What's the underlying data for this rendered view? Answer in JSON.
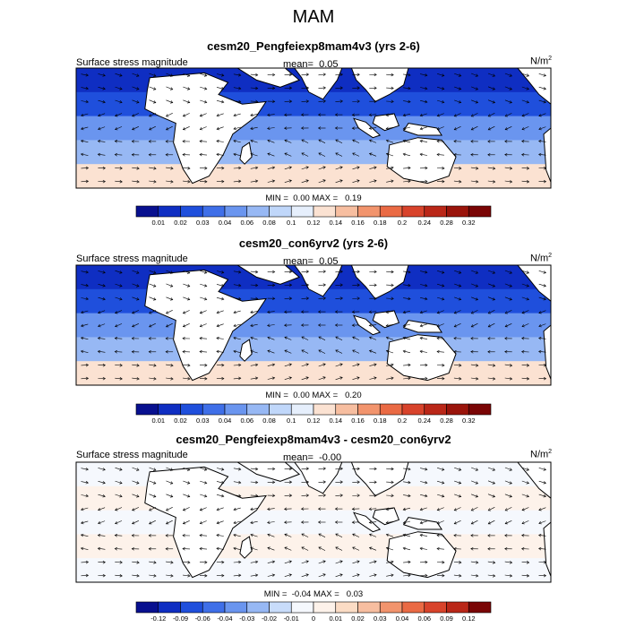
{
  "figure": {
    "title": "MAM"
  },
  "chart_data": [
    {
      "type": "heatmap",
      "title": "cesm20_Pengfeiexp8mam4v3 (yrs 2-6)",
      "left_string": "Surface stress magnitude",
      "mean_label": "mean=",
      "mean_value": "0.05",
      "units_base": "N/m",
      "units_exp": "2",
      "min_label": "MIN =",
      "min_value": "0.00",
      "max_label": "MAX =",
      "max_value": "0.19",
      "colorbar": {
        "labels": [
          "0.01",
          "0.02",
          "0.03",
          "0.04",
          "0.06",
          "0.08",
          "0.1",
          "0.12",
          "0.14",
          "0.16",
          "0.18",
          "0.2",
          "0.24",
          "0.28",
          "0.32"
        ],
        "colors": [
          "#08108f",
          "#0f2ec2",
          "#1f4fdc",
          "#3f6fe8",
          "#6a95ef",
          "#97b8f4",
          "#c0d7fa",
          "#e6effc",
          "#fbe2d2",
          "#f7bea0",
          "#f2946d",
          "#ea6a44",
          "#d8432b",
          "#ba2718",
          "#9a140b",
          "#7a0505"
        ]
      },
      "map_fill_levels": [
        0.01,
        0.02,
        0.04,
        0.07,
        0.12
      ],
      "data_note": ""
    },
    {
      "type": "heatmap",
      "title": "cesm20_con6yrv2 (yrs 2-6)",
      "left_string": "Surface stress magnitude",
      "mean_label": "mean=",
      "mean_value": "0.05",
      "units_base": "N/m",
      "units_exp": "2",
      "min_label": "MIN =",
      "min_value": "0.00",
      "max_label": "MAX =",
      "max_value": "0.20",
      "colorbar": {
        "labels": [
          "0.01",
          "0.02",
          "0.03",
          "0.04",
          "0.06",
          "0.08",
          "0.1",
          "0.12",
          "0.14",
          "0.16",
          "0.18",
          "0.2",
          "0.24",
          "0.28",
          "0.32"
        ],
        "colors": [
          "#08108f",
          "#0f2ec2",
          "#1f4fdc",
          "#3f6fe8",
          "#6a95ef",
          "#97b8f4",
          "#c0d7fa",
          "#e6effc",
          "#fbe2d2",
          "#f7bea0",
          "#f2946d",
          "#ea6a44",
          "#d8432b",
          "#ba2718",
          "#9a140b",
          "#7a0505"
        ]
      },
      "map_fill_levels": [
        0.01,
        0.02,
        0.04,
        0.07,
        0.12
      ],
      "data_note": ""
    },
    {
      "type": "heatmap",
      "title": "cesm20_Pengfeiexp8mam4v3 - cesm20_con6yrv2",
      "left_string": "Surface stress magnitude",
      "mean_label": "mean=",
      "mean_value": "-0.00",
      "units_base": "N/m",
      "units_exp": "2",
      "min_label": "MIN =",
      "min_value": "-0.04",
      "max_label": "MAX =",
      "max_value": "0.03",
      "colorbar": {
        "labels": [
          "-0.12",
          "-0.09",
          "-0.06",
          "-0.04",
          "-0.03",
          "-0.02",
          "-0.01",
          "0",
          "0.01",
          "0.02",
          "0.03",
          "0.04",
          "0.06",
          "0.09",
          "0.12"
        ],
        "colors": [
          "#08108f",
          "#0f2ec2",
          "#1f4fdc",
          "#3f6fe8",
          "#6a95ef",
          "#97b8f4",
          "#c8dcfa",
          "#f5f8fd",
          "#fdf2ea",
          "#fbdcc5",
          "#f7bea0",
          "#f2946d",
          "#ea6a44",
          "#d8432b",
          "#ba2718",
          "#7a0505"
        ]
      },
      "map_fill_levels": [
        -0.005,
        0.005,
        -0.005,
        0.005,
        -0.01
      ],
      "data_note": ""
    }
  ]
}
